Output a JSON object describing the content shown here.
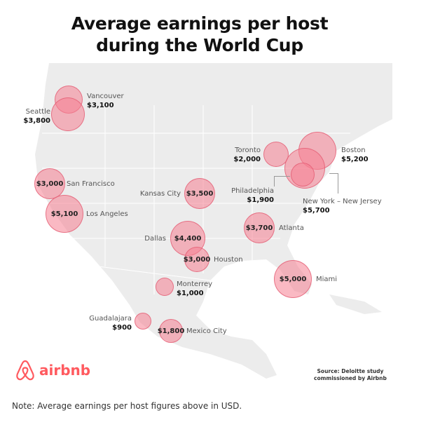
{
  "title_line1": "Average earnings per host",
  "title_line2": "during the World Cup",
  "colors": {
    "bubble": "#f68092",
    "bubble_stroke": "#e25a70",
    "land": "#ececec",
    "brand": "#ff5a5f"
  },
  "cities": [
    {
      "name": "Vancouver",
      "value": "$3,100"
    },
    {
      "name": "Seattle",
      "value": "$3,800"
    },
    {
      "name": "San Francisco",
      "value": "$3,000"
    },
    {
      "name": "Los Angeles",
      "value": "$5,100"
    },
    {
      "name": "Kansas City",
      "value": "$3,500"
    },
    {
      "name": "Dallas",
      "value": "$4,400"
    },
    {
      "name": "Houston",
      "value": "$3,000"
    },
    {
      "name": "Monterrey",
      "value": "$1,000"
    },
    {
      "name": "Guadalajara",
      "value": "$900"
    },
    {
      "name": "Mexico City",
      "value": "$1,800"
    },
    {
      "name": "Toronto",
      "value": "$2,000"
    },
    {
      "name": "Boston",
      "value": "$5,200"
    },
    {
      "name": "New York – New Jersey",
      "value": "$5,700"
    },
    {
      "name": "Philadelphia",
      "value": "$1,900"
    },
    {
      "name": "Atlanta",
      "value": "$3,700"
    },
    {
      "name": "Miami",
      "value": "$5,000"
    }
  ],
  "logo_text": "airbnb",
  "source_line1": "Source:  Deloitte study",
  "source_line2": "commissioned by Airbnb",
  "note": "Note: Average earnings per host figures above in USD."
}
